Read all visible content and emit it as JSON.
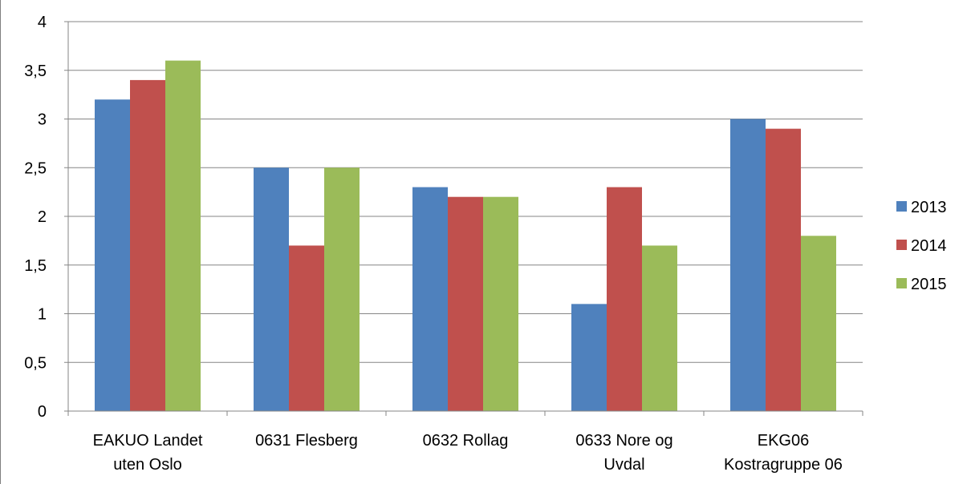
{
  "chart_data": {
    "type": "bar",
    "title": "",
    "xlabel": "",
    "ylabel": "",
    "ylim": [
      0,
      4
    ],
    "yticks": [
      "0",
      "0,5",
      "1",
      "1,5",
      "2",
      "2,5",
      "3",
      "3,5",
      "4"
    ],
    "grid": true,
    "legend_position": "right",
    "categories": [
      [
        "EAKUO Landet",
        "uten Oslo"
      ],
      [
        "0631 Flesberg"
      ],
      [
        "0632 Rollag"
      ],
      [
        "0633 Nore og",
        "Uvdal"
      ],
      [
        "EKG06",
        "Kostragruppe 06"
      ]
    ],
    "series": [
      {
        "name": "2013",
        "color": "#4f81bd",
        "values": [
          3.2,
          2.5,
          2.3,
          1.1,
          3.0
        ]
      },
      {
        "name": "2014",
        "color": "#c0504d",
        "values": [
          3.4,
          1.7,
          2.2,
          2.3,
          2.9
        ]
      },
      {
        "name": "2015",
        "color": "#9bbb59",
        "values": [
          3.6,
          2.5,
          2.2,
          1.7,
          1.8
        ]
      }
    ]
  }
}
